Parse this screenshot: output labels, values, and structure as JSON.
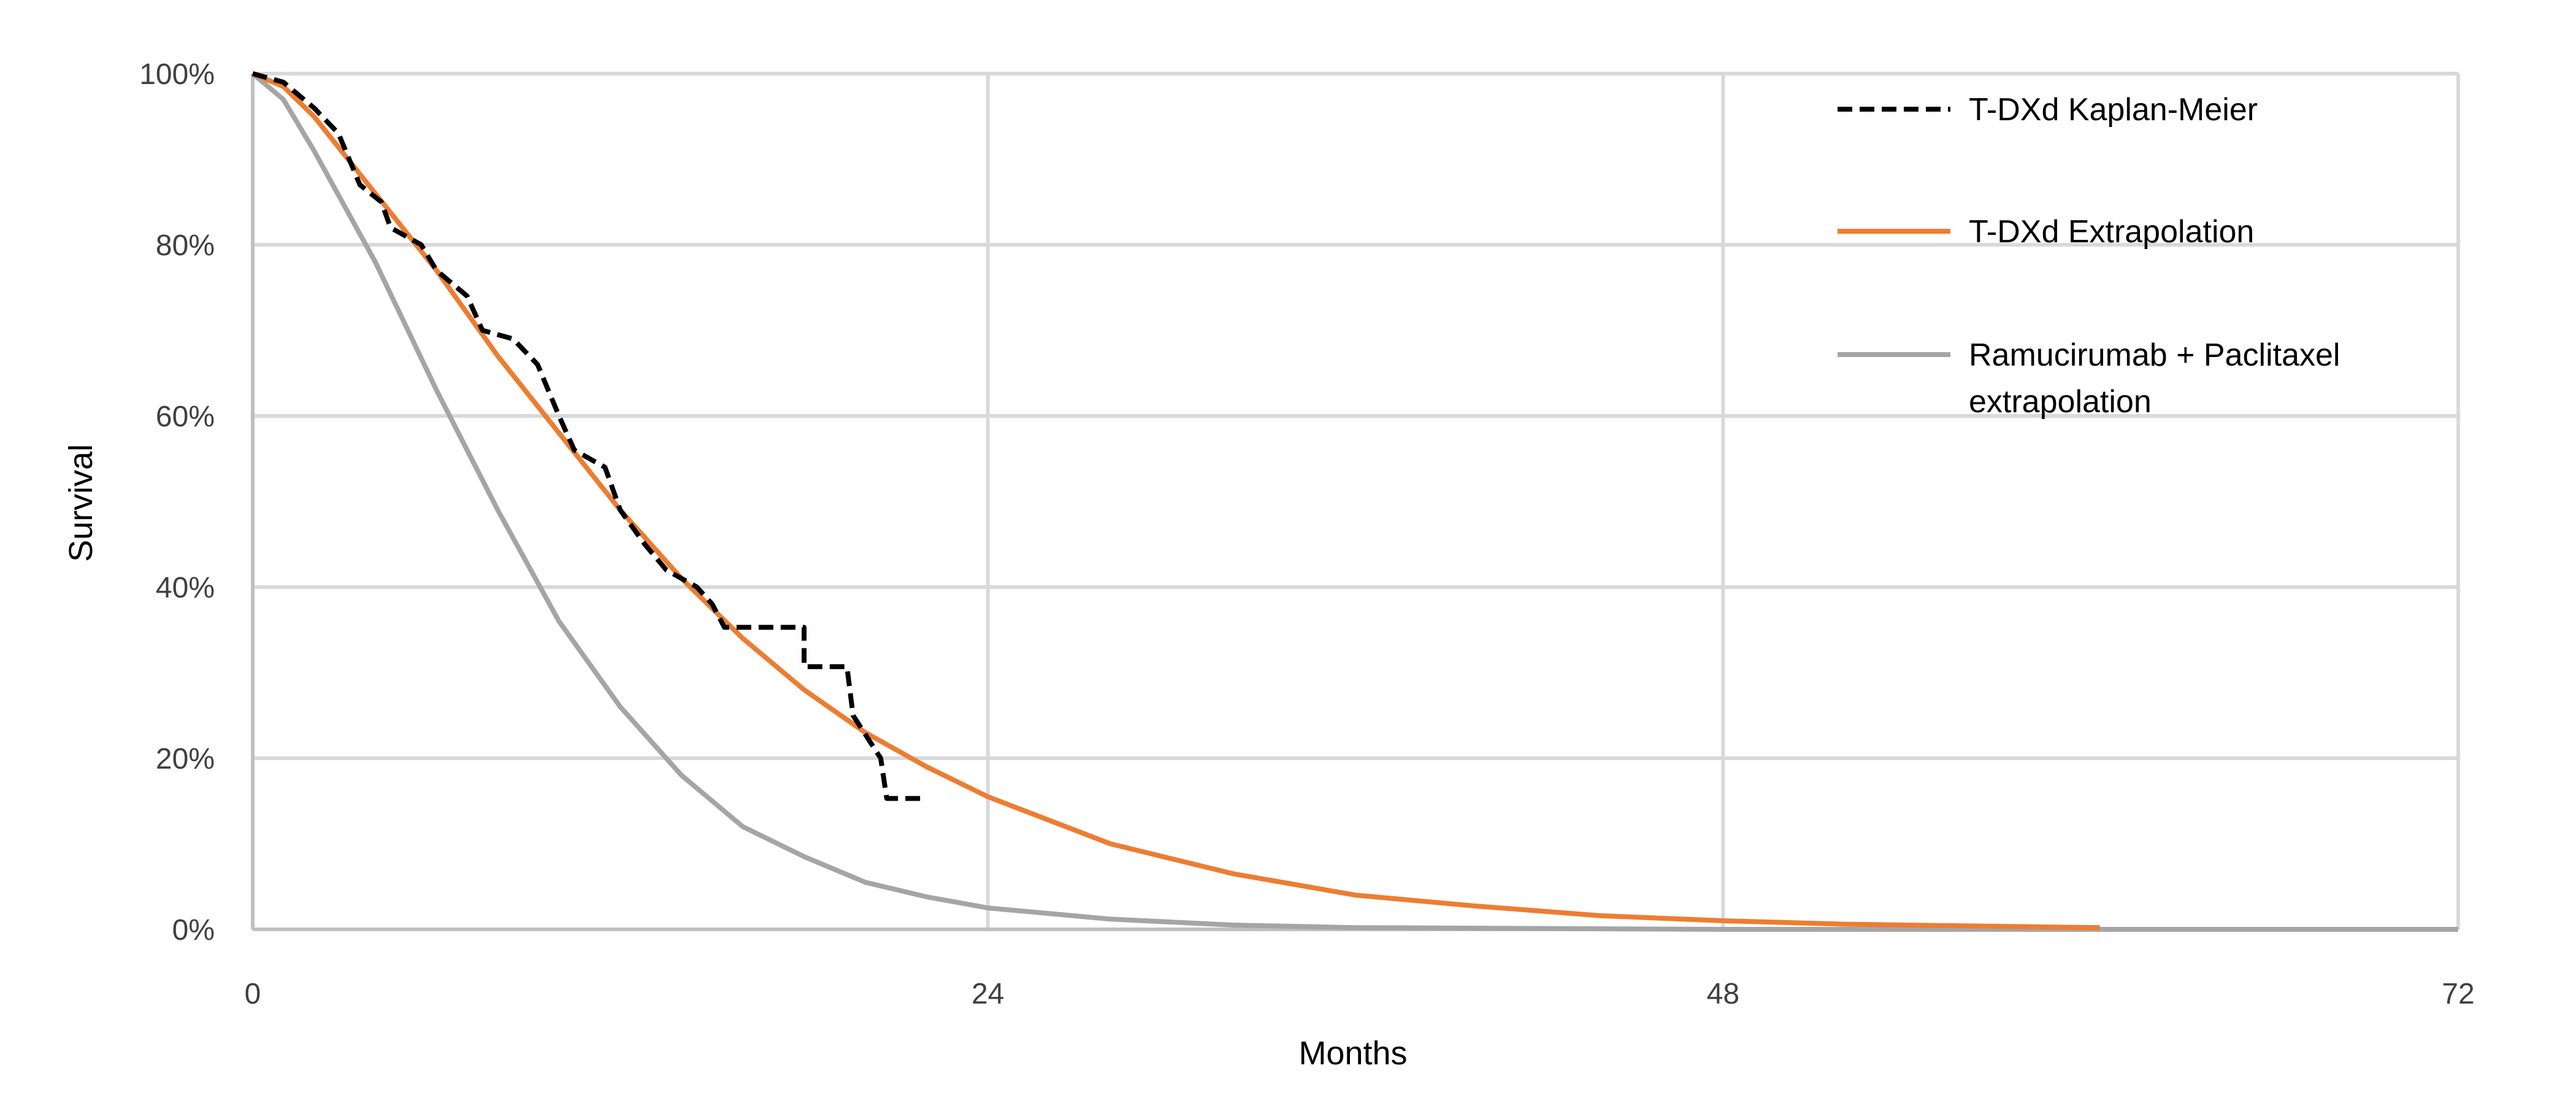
{
  "chart_data": {
    "type": "line",
    "title": "",
    "xlabel": "Months",
    "ylabel": "Survival",
    "xlim": [
      0,
      72
    ],
    "ylim": [
      0,
      100
    ],
    "x_ticks": [
      "0",
      "24",
      "48",
      "72"
    ],
    "x_tick_values": [
      0,
      24,
      48,
      72
    ],
    "y_ticks": [
      "0%",
      "20%",
      "40%",
      "60%",
      "80%",
      "100%"
    ],
    "y_tick_values": [
      0,
      20,
      40,
      60,
      80,
      100
    ],
    "grid": true,
    "legend_position": "top-right",
    "series": [
      {
        "name": "T-DXd Kaplan-Meier",
        "color": "#000000",
        "style": "dashed-step",
        "x": [
          0,
          1,
          2,
          2.8,
          3.5,
          4.2,
          4.5,
          5.5,
          6,
          7,
          7.5,
          8.5,
          9.3,
          10,
          10.5,
          11.5,
          12,
          12.8,
          13.5,
          14.5,
          15,
          15.4,
          18,
          18,
          19.4,
          19.6,
          20.5,
          20.7,
          21.9
        ],
        "y": [
          100,
          99,
          96,
          93,
          87,
          85,
          82,
          80,
          77,
          74,
          70,
          69,
          66,
          60,
          56,
          54,
          49,
          45,
          42,
          40,
          38,
          35.3,
          35.3,
          30.7,
          30.7,
          25,
          20,
          15.3,
          15.3
        ]
      },
      {
        "name": "T-DXd Extrapolation",
        "color": "#ED7D31",
        "style": "solid",
        "x": [
          0,
          1,
          2,
          4,
          6,
          8,
          10,
          12,
          14,
          16,
          18,
          20,
          22,
          24,
          28,
          32,
          36,
          40,
          44,
          48,
          52,
          56,
          60.3
        ],
        "y": [
          100,
          98.5,
          95,
          86,
          77,
          67,
          58,
          49,
          41,
          34,
          28,
          23,
          19,
          15.5,
          10,
          6.5,
          4,
          2.7,
          1.6,
          1,
          0.6,
          0.4,
          0.2
        ]
      },
      {
        "name": "Ramucirumab + Paclitaxel extrapolation",
        "legend_lines": [
          "Ramucirumab + Paclitaxel",
          "extrapolation"
        ],
        "color": "#A5A5A5",
        "style": "solid",
        "x": [
          0,
          1,
          2,
          4,
          6,
          8,
          10,
          12,
          14,
          16,
          18,
          20,
          22,
          24,
          28,
          32,
          36,
          48,
          72
        ],
        "y": [
          100,
          97,
          91,
          78,
          63,
          49,
          36,
          26,
          18,
          12,
          8.5,
          5.5,
          3.8,
          2.5,
          1.2,
          0.5,
          0.2,
          0,
          0
        ]
      }
    ]
  }
}
